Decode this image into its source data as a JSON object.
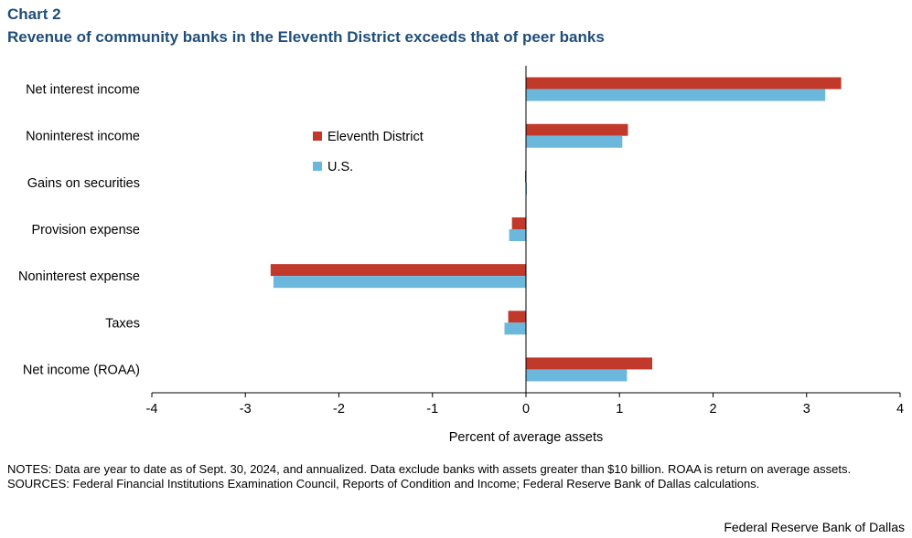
{
  "header": {
    "chart_number": "Chart 2",
    "title": "Revenue of community banks in the Eleventh District exceeds that of peer banks"
  },
  "chart_data": {
    "type": "bar",
    "orientation": "horizontal",
    "categories": [
      "Net interest income",
      "Noninterest income",
      "Gains on securities",
      "Provision expense",
      "Noninterest expense",
      "Taxes",
      "Net income (ROAA)"
    ],
    "series": [
      {
        "name": "Eleventh District",
        "color": "#c0392b",
        "values": [
          3.37,
          1.09,
          -0.01,
          -0.15,
          -2.73,
          -0.19,
          1.35
        ]
      },
      {
        "name": "U.S.",
        "color": "#6cb8dd",
        "values": [
          3.2,
          1.03,
          0.01,
          -0.18,
          -2.7,
          -0.23,
          1.08
        ]
      }
    ],
    "xlabel": "Percent of average assets",
    "ylabel": "",
    "xlim": [
      -4,
      4
    ],
    "xticks": [
      "-4",
      "-3",
      "-2",
      "-1",
      "0",
      "1",
      "2",
      "3",
      "4"
    ],
    "grid": false,
    "legend_position": "upper-middle"
  },
  "notes": {
    "notes_text": "NOTES: Data are year to date as of Sept. 30, 2024, and annualized. Data exclude banks with assets greater than $10 billion. ROAA is return on average assets.",
    "sources_text": "SOURCES: Federal Financial Institutions Examination Council, Reports of Condition and Income; Federal Reserve Bank of Dallas calculations."
  },
  "footer": {
    "credit": "Federal Reserve Bank of Dallas"
  }
}
